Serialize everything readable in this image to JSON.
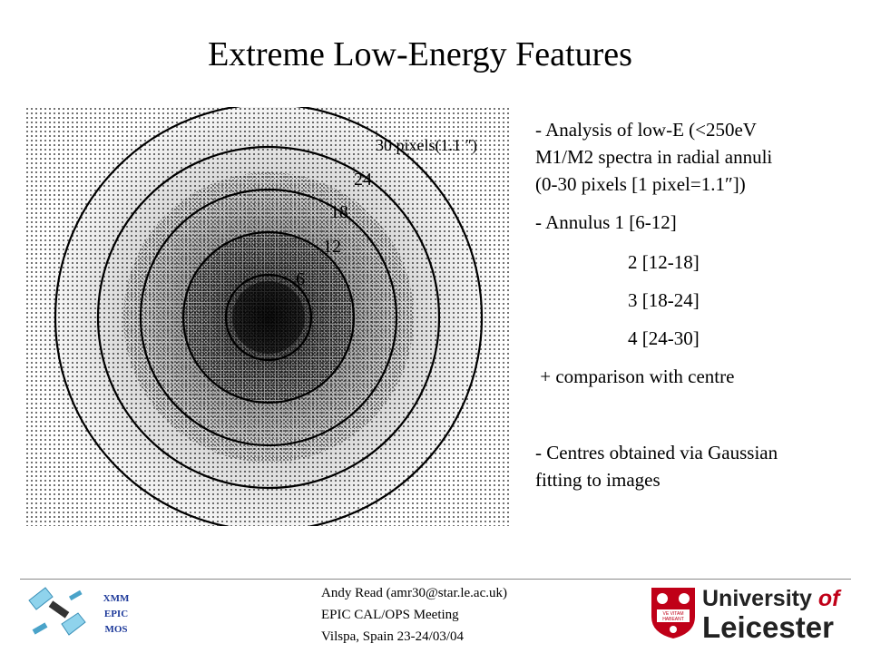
{
  "slide": {
    "title": "Extreme Low-Energy Features"
  },
  "figure": {
    "ring_labels": [
      "30 pixels(1.1 ″)",
      "24",
      "18",
      "12",
      "6"
    ],
    "ring_radii_pixels": [
      30,
      24,
      18,
      12,
      6
    ]
  },
  "bullets": [
    "- Analysis of low-E (<250eV",
    "M1/M2 spectra in radial annuli",
    "(0-30 pixels [1 pixel=1.1″])",
    "- Annulus 1 [6-12]",
    "2 [12-18]",
    "3 [18-24]",
    "4 [24-30]",
    " + comparison with centre",
    "- Centres obtained via Gaussian",
    "fitting to images"
  ],
  "footer": {
    "mos_label": [
      "XMM",
      "EPIC",
      "MOS"
    ],
    "author": "Andy Read (amr30@star.le.ac.uk)",
    "meeting": "EPIC CAL/OPS Meeting",
    "location": "Vilspa, Spain 23-24/03/04",
    "uni_line1": "University",
    "uni_of": "of",
    "uni_line2": "Leicester",
    "shield_text": [
      "VE VITAM",
      "HABEANT"
    ],
    "colors": {
      "rule": "#888888",
      "mos_blue": "#1e3a9a",
      "leicester_red": "#c00018"
    }
  }
}
